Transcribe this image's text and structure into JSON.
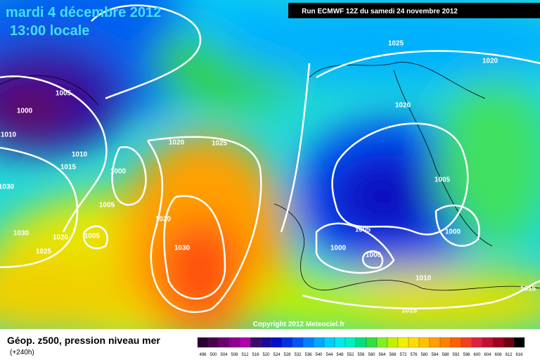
{
  "header": {
    "date": "mardi 4 décembre 2012",
    "time": "13:00 locale",
    "run": "Run ECMWF 12Z du samedi 24 novembre 2012"
  },
  "map": {
    "copyright": "Copyright 2012 Meteociel.fr",
    "isobar_labels": [
      "1025",
      "1020",
      "1005",
      "1000",
      "1010",
      "1020",
      "1010",
      "1020",
      "1025",
      "1015",
      "1000",
      "1030",
      "1005",
      "1005",
      "1020",
      "1030",
      "1020",
      "1005",
      "1005",
      "1000",
      "1030",
      "1000",
      "1025",
      "1000",
      "1010",
      "1015",
      "1015"
    ]
  },
  "legend": {
    "title": "Géop. z500, pression niveau mer",
    "lead": "(+240h)",
    "scale": [
      {
        "label": "496",
        "color": "#2b0033"
      },
      {
        "label": "500",
        "color": "#4b0050"
      },
      {
        "label": "504",
        "color": "#6e006e"
      },
      {
        "label": "508",
        "color": "#900090"
      },
      {
        "label": "512",
        "color": "#b000b0"
      },
      {
        "label": "516",
        "color": "#3a0a6a"
      },
      {
        "label": "520",
        "color": "#1a0a9a"
      },
      {
        "label": "524",
        "color": "#0010c8"
      },
      {
        "label": "528",
        "color": "#0030e6"
      },
      {
        "label": "532",
        "color": "#0055f5"
      },
      {
        "label": "536",
        "color": "#0080ff"
      },
      {
        "label": "540",
        "color": "#00a8ff"
      },
      {
        "label": "544",
        "color": "#00ccff"
      },
      {
        "label": "548",
        "color": "#00e8f0"
      },
      {
        "label": "552",
        "color": "#00f0c0"
      },
      {
        "label": "556",
        "color": "#00e080"
      },
      {
        "label": "560",
        "color": "#30e040"
      },
      {
        "label": "564",
        "color": "#80f020"
      },
      {
        "label": "568",
        "color": "#c0f000"
      },
      {
        "label": "572",
        "color": "#f0f000"
      },
      {
        "label": "576",
        "color": "#ffdc00"
      },
      {
        "label": "580",
        "color": "#ffc000"
      },
      {
        "label": "584",
        "color": "#ffa000"
      },
      {
        "label": "588",
        "color": "#ff8000"
      },
      {
        "label": "592",
        "color": "#ff6000"
      },
      {
        "label": "596",
        "color": "#f04020"
      },
      {
        "label": "600",
        "color": "#e02040"
      },
      {
        "label": "604",
        "color": "#c01030"
      },
      {
        "label": "608",
        "color": "#a00020"
      },
      {
        "label": "612",
        "color": "#700010"
      },
      {
        "label": "616",
        "color": "#000000"
      }
    ]
  }
}
